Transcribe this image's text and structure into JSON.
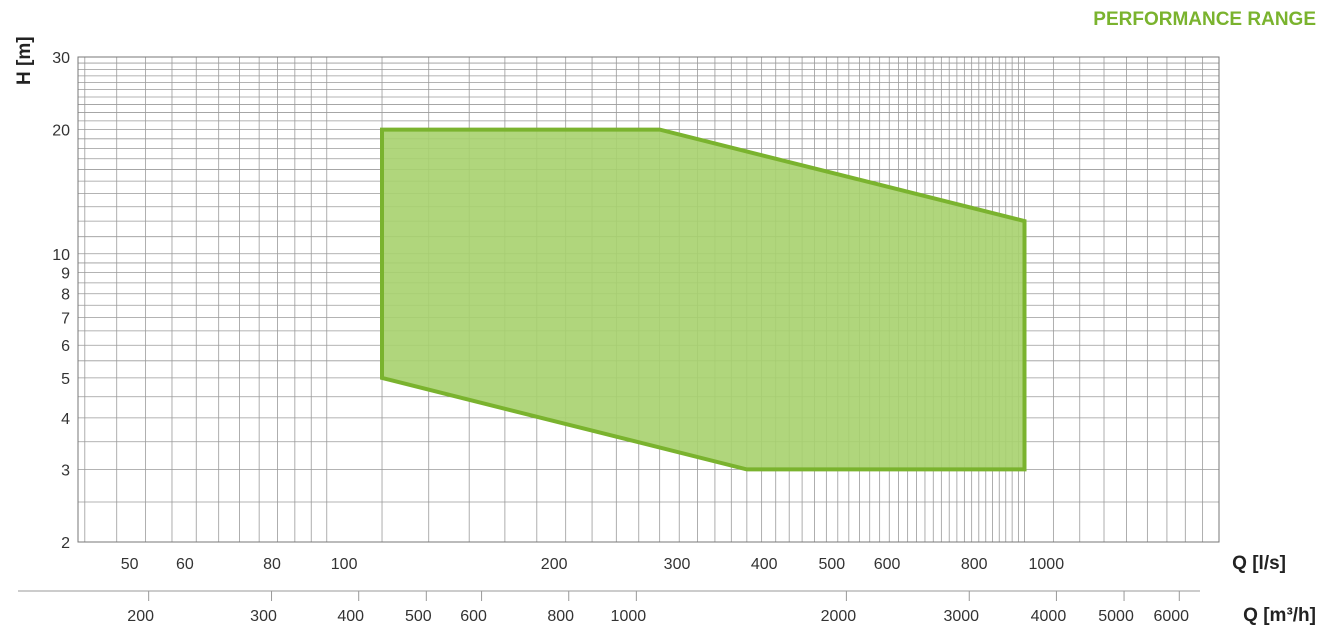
{
  "chart_data": {
    "type": "area",
    "title": "PERFORMANCE RANGE",
    "x_scale": "log",
    "y_scale": "log",
    "xlabel": {
      "symbol": "Q",
      "unit": "[l/s]"
    },
    "x2label": {
      "symbol": "Q",
      "unit": "[m³/h]"
    },
    "ylabel": {
      "symbol": "H",
      "unit": "[m]"
    },
    "xlim": [
      44,
      1900
    ],
    "ylim": [
      2,
      30
    ],
    "x_ticks": [
      50,
      60,
      80,
      100,
      200,
      300,
      400,
      500,
      600,
      800,
      1000
    ],
    "x2_ticks": [
      200,
      300,
      400,
      500,
      600,
      800,
      1000,
      2000,
      3000,
      4000,
      5000,
      6000
    ],
    "y_ticks": [
      2,
      3,
      4,
      5,
      6,
      7,
      8,
      9,
      10,
      20,
      30
    ],
    "grid": true,
    "region": {
      "x": [
        120,
        120,
        300,
        1000,
        1000,
        400,
        120
      ],
      "y": [
        5,
        20,
        20,
        12,
        3,
        3,
        5
      ]
    },
    "colors": {
      "fill": "#a7d26e",
      "stroke": "#7ab32e",
      "title": "#7ab32e",
      "grid": "#9a9a9a"
    }
  }
}
